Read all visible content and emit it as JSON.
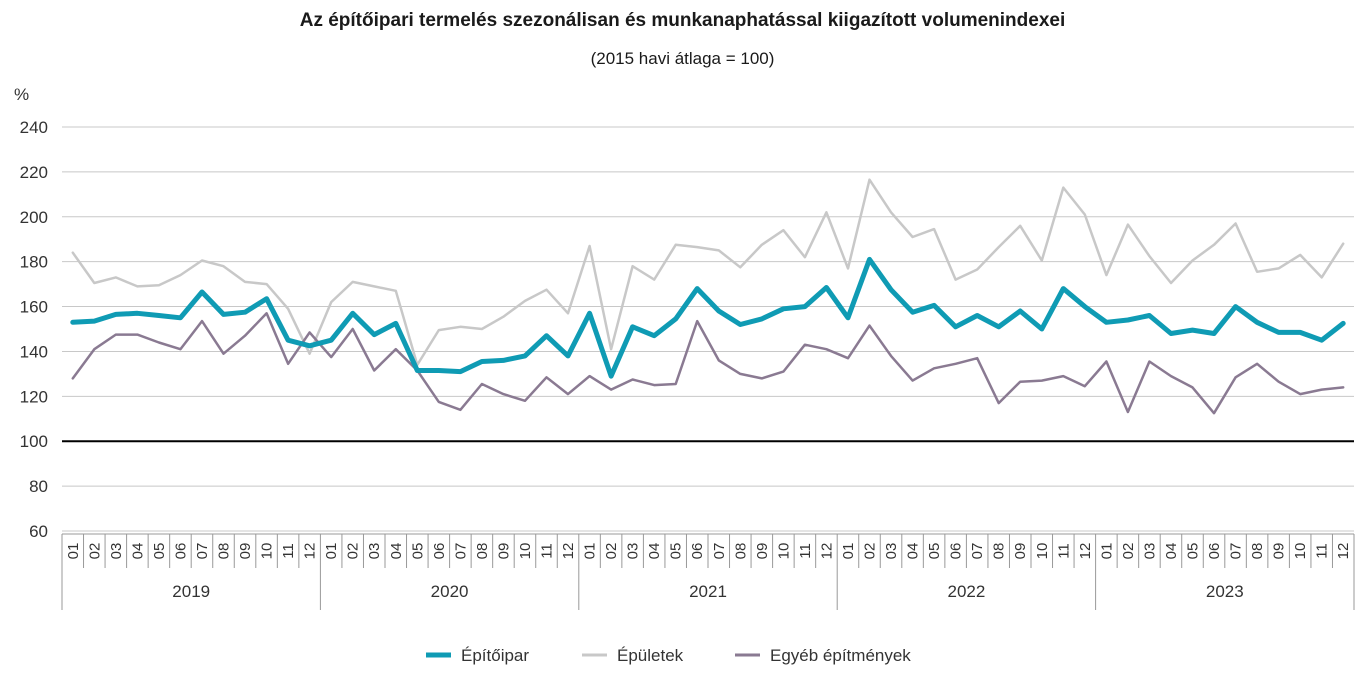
{
  "chart_data": {
    "type": "line",
    "title": "Az építőipari termelés szezonálisan és munkanaphatással kiigazított volumenindexei",
    "subtitle": "(2015 havi átlaga = 100)",
    "ylabel": "%",
    "xlabel": "",
    "ylim": [
      60,
      240
    ],
    "yticks": [
      60,
      80,
      100,
      120,
      140,
      160,
      180,
      200,
      220,
      240
    ],
    "reference_line": 100,
    "grid": true,
    "legend_position": "bottom-center",
    "month_labels": [
      "01",
      "02",
      "03",
      "04",
      "05",
      "06",
      "07",
      "08",
      "09",
      "10",
      "11",
      "12"
    ],
    "years": [
      "2019",
      "2020",
      "2021",
      "2022",
      "2023"
    ],
    "series": [
      {
        "name": "Építőipar",
        "color": "#0f9bb4",
        "values": [
          153,
          153.5,
          156.5,
          157,
          156,
          155,
          166.5,
          156.5,
          157.5,
          163.5,
          145,
          142.5,
          145,
          157,
          147.5,
          152.5,
          131.5,
          131.5,
          131,
          135.5,
          136,
          138,
          147,
          138,
          157,
          129,
          151,
          147,
          154.5,
          168,
          158,
          152,
          154.5,
          159,
          160,
          168.5,
          155,
          181,
          167.5,
          157.5,
          160.5,
          151,
          156,
          151,
          158,
          150,
          168,
          160,
          153,
          154,
          156,
          148,
          149.5,
          148,
          160,
          153,
          148.5,
          148.5,
          145,
          152.5
        ]
      },
      {
        "name": "Épületek",
        "color": "#c8c8c8",
        "values": [
          184,
          170.5,
          173,
          169,
          169.5,
          174,
          180.5,
          178,
          171,
          170,
          159,
          139,
          162,
          171,
          169,
          167,
          134,
          149.5,
          151,
          150,
          155.5,
          162.5,
          167.5,
          157,
          187,
          141,
          178,
          172,
          187.5,
          186.5,
          185,
          177.5,
          187.5,
          194,
          182,
          202,
          177,
          216.5,
          202,
          191,
          194.5,
          172,
          176.5,
          186.5,
          196,
          180.5,
          213,
          201,
          174,
          196.5,
          182.5,
          170.5,
          180.5,
          187.5,
          197,
          175.5,
          177,
          183,
          173,
          188
        ]
      },
      {
        "name": "Egyéb építmények",
        "color": "#8a7a92",
        "values": [
          128,
          141,
          147.5,
          147.5,
          144,
          141,
          153.5,
          139,
          147,
          157,
          134.5,
          148.5,
          137.5,
          150,
          131.5,
          141,
          131.5,
          117.5,
          114,
          125.5,
          121,
          118,
          128.5,
          121,
          129,
          123,
          127.5,
          125,
          125.5,
          153.5,
          136,
          130,
          128,
          131,
          143,
          141,
          137,
          151.5,
          138,
          127,
          132.5,
          134.5,
          137,
          117,
          126.5,
          127,
          129,
          124.5,
          135.5,
          113,
          135.5,
          129,
          124,
          112.5,
          128.5,
          134.5,
          126.5,
          121,
          123,
          124
        ]
      }
    ]
  }
}
